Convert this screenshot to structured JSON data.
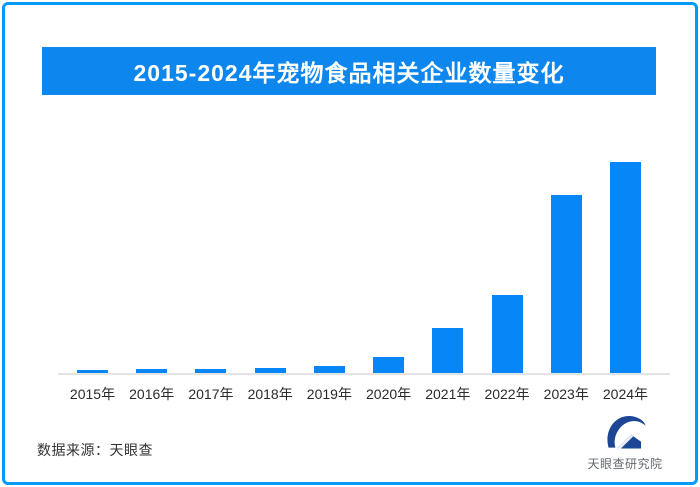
{
  "page": {
    "background_color": "#ffffff",
    "border_color": "#009bfb"
  },
  "header": {
    "title": "2015-2024年宠物食品相关企业数量变化",
    "banner_color": "#0d86ed",
    "title_color": "#ffffff"
  },
  "chart_data": {
    "type": "bar",
    "title": "2015-2024年宠物食品相关企业数量变化",
    "categories": [
      "2015年",
      "2016年",
      "2017年",
      "2018年",
      "2019年",
      "2020年",
      "2021年",
      "2022年",
      "2023年",
      "2024年"
    ],
    "values": [
      1.2,
      1.9,
      1.7,
      2.4,
      3.1,
      7.8,
      21.3,
      37.0,
      84.4,
      100
    ],
    "units": "relative scale estimated from bar heights (2024 = 100); chart shows no numeric axis labels",
    "ylim": [
      0,
      100
    ],
    "xlabel": "",
    "ylabel": "",
    "grid": false,
    "legend_position": "none",
    "bar_color": "#0787f7",
    "axis_line_color": "#e4e4e7",
    "tick_label_color": "#2b2b2b"
  },
  "footer": {
    "source_text": "数据来源：天眼查",
    "logo_label": "天眼查研究院",
    "logo_color": "#1d4795"
  }
}
